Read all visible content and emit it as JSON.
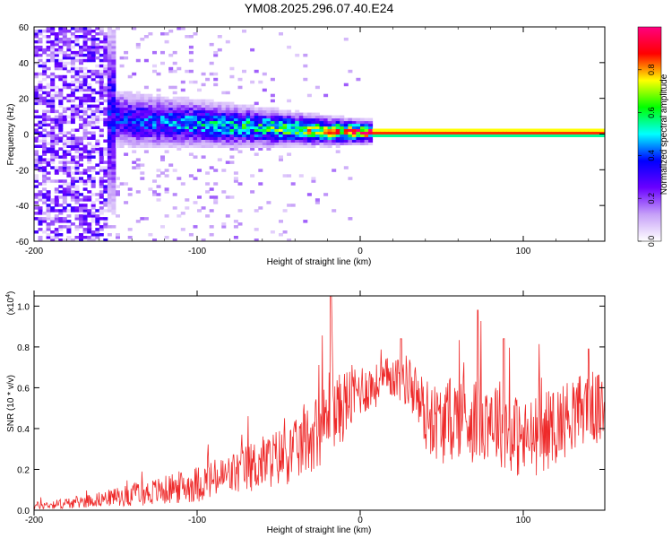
{
  "chart_data": [
    {
      "type": "heatmap",
      "title": "YM08.2025.296.07.40.E24",
      "xlabel": "Height of straight line (km)",
      "ylabel": "Frequency (Hz)",
      "xlim": [
        -200,
        150
      ],
      "ylim": [
        -60,
        60
      ],
      "xticks": [
        -200,
        -100,
        0,
        100
      ],
      "yticks": [
        -60,
        -40,
        -20,
        0,
        20,
        40,
        60
      ],
      "colorbar": {
        "label": "Normalized spectral amplitude",
        "range": [
          0,
          1
        ],
        "ticks": [
          "0.0",
          "0.2",
          "0.4",
          "0.6",
          "0.8"
        ],
        "colors": [
          "#ffffff",
          "#c6a0f8",
          "#6a00ff",
          "#0000ff",
          "#00ffff",
          "#00ff00",
          "#ffff00",
          "#ff0000",
          "#ff0080"
        ]
      },
      "ridge": {
        "description": "dominant frequency vs height",
        "x": [
          -160,
          -140,
          -120,
          -100,
          -80,
          -60,
          -40,
          -20,
          0,
          20,
          60,
          100,
          150
        ],
        "y": [
          10,
          7,
          6,
          5,
          4,
          3,
          2,
          1,
          0.5,
          0.5,
          0.5,
          0.5,
          0.5
        ],
        "peak_value": [
          0.35,
          0.4,
          0.45,
          0.5,
          0.55,
          0.6,
          0.7,
          0.8,
          0.9,
          0.95,
          0.95,
          0.95,
          0.95
        ]
      }
    },
    {
      "type": "line",
      "series_name": "SNR",
      "color": "#ee2a2a",
      "xlabel": "Height of straight line (km)",
      "ylabel": "SNR (10 * v/v)",
      "y_multiplier": "(x10",
      "y_multiplier_exp": "4",
      "y_multiplier_close": ")",
      "xlim": [
        -200,
        150
      ],
      "ylim": [
        0,
        1.05
      ],
      "xticks": [
        -200,
        -100,
        0,
        100
      ],
      "yticks": [
        0.0,
        0.2,
        0.4,
        0.6,
        0.8,
        1.0
      ],
      "ytick_labels": [
        "0.0",
        "0.2",
        "0.4",
        "0.6",
        "0.8",
        "1.0"
      ],
      "envelope_x": [
        -200,
        -180,
        -160,
        -140,
        -120,
        -100,
        -80,
        -60,
        -40,
        -30,
        -20,
        -18,
        -15,
        -10,
        0,
        10,
        20,
        30,
        40,
        50,
        60,
        70,
        80,
        90,
        100,
        110,
        120,
        130,
        140,
        150
      ],
      "envelope_y": [
        0.02,
        0.03,
        0.05,
        0.07,
        0.09,
        0.12,
        0.16,
        0.22,
        0.27,
        0.35,
        0.42,
        0.55,
        0.45,
        0.5,
        0.58,
        0.6,
        0.65,
        0.62,
        0.45,
        0.4,
        0.45,
        0.42,
        0.45,
        0.38,
        0.32,
        0.35,
        0.4,
        0.45,
        0.5,
        0.45
      ],
      "noise_amp": [
        0.02,
        0.03,
        0.04,
        0.06,
        0.08,
        0.1,
        0.12,
        0.15,
        0.17,
        0.2,
        0.22,
        0.25,
        0.2,
        0.2,
        0.15,
        0.12,
        0.12,
        0.15,
        0.2,
        0.22,
        0.24,
        0.24,
        0.24,
        0.24,
        0.22,
        0.22,
        0.22,
        0.2,
        0.2,
        0.2
      ],
      "spikes": [
        {
          "x": -18,
          "y": 1.05
        },
        {
          "x": 72,
          "y": 0.98
        },
        {
          "x": 88,
          "y": 0.84
        },
        {
          "x": 140,
          "y": 0.79
        },
        {
          "x": 25,
          "y": 0.84
        }
      ]
    }
  ]
}
